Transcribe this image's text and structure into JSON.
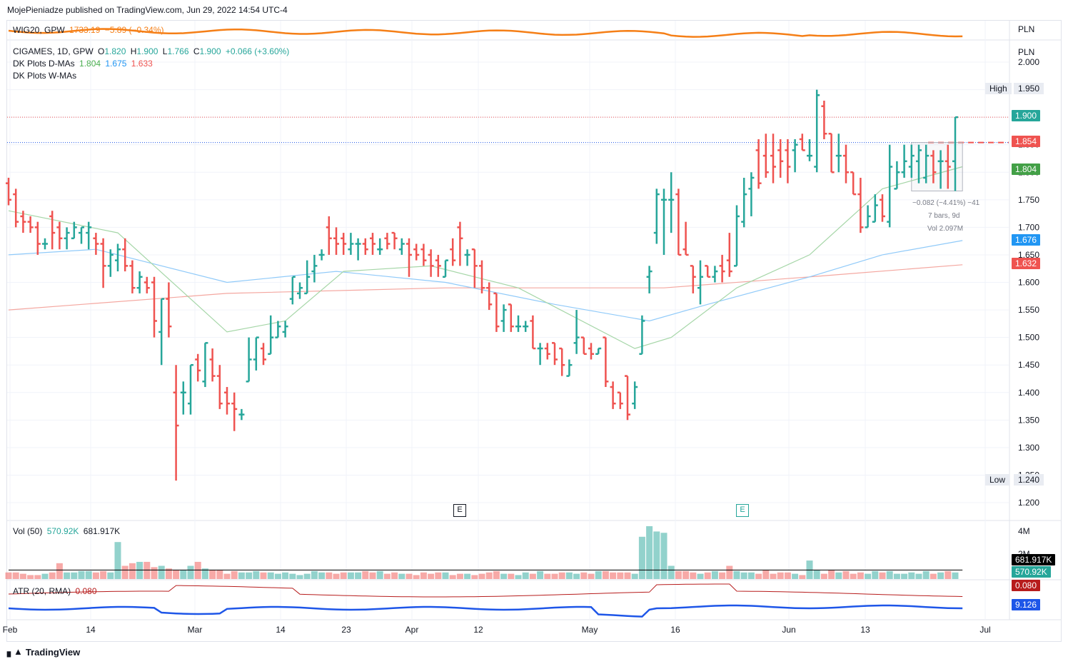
{
  "header": {
    "published": "MojePieniadze published on TradingView.com, Jun 29, 2022 14:54 UTC-4"
  },
  "wig20": {
    "symbol": "WIG20, GPW",
    "value": "1733.19",
    "change": "−5.89 (−0.34%)",
    "currency": "PLN",
    "color": "#f57f17"
  },
  "main": {
    "symbol": "CIGAMES, 1D, GPW",
    "o_label": "O",
    "o": "1.820",
    "h_label": "H",
    "h": "1.900",
    "l_label": "L",
    "l": "1.766",
    "c_label": "C",
    "c": "1.900",
    "change": "+0.066 (+3.60%)",
    "currency": "PLN",
    "dma_label": "DK Plots D-MAs",
    "dma1": "1.804",
    "dma2": "1.675",
    "dma3": "1.633",
    "wma_label": "DK Plots W-MAs"
  },
  "price_axis": {
    "ticks": [
      "2.000",
      "1.950",
      "1.900",
      "1.850",
      "1.800",
      "1.750",
      "1.700",
      "1.650",
      "1.600",
      "1.550",
      "1.500",
      "1.450",
      "1.400",
      "1.350",
      "1.300",
      "1.250",
      "1.200"
    ],
    "high_label": "High",
    "high": "1.950",
    "low_label": "Low",
    "low": "1.240",
    "last": "1.900",
    "dashed_level": "1.854",
    "ma20": "1.804",
    "ma50": "1.676",
    "ma200": "1.632"
  },
  "measure": {
    "line1": "−0.082 (−4.41%) −41",
    "line2": "7 bars, 9d",
    "line3": "Vol 2.097M"
  },
  "earnings_marker": "E",
  "volume": {
    "label": "Vol (50)",
    "value": "570.92K",
    "ma": "681.917K",
    "axis_top": "4M",
    "axis_mid": "2M"
  },
  "atr": {
    "label": "ATR (20, RMA)",
    "value": "0.080",
    "blue_value": "9.126"
  },
  "time_axis": [
    "Feb",
    "14",
    "Mar",
    "14",
    "23",
    "Apr",
    "12",
    "May",
    "16",
    "Jun",
    "13",
    "Jul"
  ],
  "colors": {
    "up": "#26a69a",
    "down": "#ef5350",
    "ma20": "#a5d6a7",
    "ma50": "#90caf9",
    "ma200": "#f4a7a0",
    "atr_line": "#b71c1c",
    "blue_line": "#1e56e8",
    "vol_ma": "#000000"
  },
  "footer": {
    "brand": "TradingView"
  },
  "chart_data": {
    "type": "ohlc",
    "title": "CIGAMES, 1D, GPW",
    "ylim": [
      1.2,
      2.0
    ],
    "bars": [
      {
        "o": 1.78,
        "h": 1.79,
        "l": 1.74,
        "c": 1.75
      },
      {
        "o": 1.76,
        "h": 1.77,
        "l": 1.7,
        "c": 1.71
      },
      {
        "o": 1.72,
        "h": 1.73,
        "l": 1.69,
        "c": 1.71
      },
      {
        "o": 1.71,
        "h": 1.72,
        "l": 1.69,
        "c": 1.7
      },
      {
        "o": 1.7,
        "h": 1.71,
        "l": 1.65,
        "c": 1.67
      },
      {
        "o": 1.67,
        "h": 1.68,
        "l": 1.66,
        "c": 1.67
      },
      {
        "o": 1.72,
        "h": 1.73,
        "l": 1.66,
        "c": 1.69
      },
      {
        "o": 1.7,
        "h": 1.71,
        "l": 1.66,
        "c": 1.68
      },
      {
        "o": 1.68,
        "h": 1.7,
        "l": 1.66,
        "c": 1.69
      },
      {
        "o": 1.68,
        "h": 1.71,
        "l": 1.68,
        "c": 1.7
      },
      {
        "o": 1.69,
        "h": 1.7,
        "l": 1.67,
        "c": 1.7
      },
      {
        "o": 1.69,
        "h": 1.71,
        "l": 1.66,
        "c": 1.7
      },
      {
        "o": 1.68,
        "h": 1.69,
        "l": 1.65,
        "c": 1.67
      },
      {
        "o": 1.67,
        "h": 1.68,
        "l": 1.59,
        "c": 1.63
      },
      {
        "o": 1.63,
        "h": 1.66,
        "l": 1.61,
        "c": 1.65
      },
      {
        "o": 1.64,
        "h": 1.67,
        "l": 1.62,
        "c": 1.66
      },
      {
        "o": 1.66,
        "h": 1.68,
        "l": 1.62,
        "c": 1.63
      },
      {
        "o": 1.63,
        "h": 1.64,
        "l": 1.58,
        "c": 1.59
      },
      {
        "o": 1.59,
        "h": 1.62,
        "l": 1.58,
        "c": 1.61
      },
      {
        "o": 1.6,
        "h": 1.61,
        "l": 1.58,
        "c": 1.59
      },
      {
        "o": 1.6,
        "h": 1.61,
        "l": 1.5,
        "c": 1.53
      },
      {
        "o": 1.51,
        "h": 1.57,
        "l": 1.45,
        "c": 1.57
      },
      {
        "o": 1.57,
        "h": 1.6,
        "l": 1.5,
        "c": 1.52
      },
      {
        "o": 1.4,
        "h": 1.45,
        "l": 1.24,
        "c": 1.34
      },
      {
        "o": 1.4,
        "h": 1.42,
        "l": 1.36,
        "c": 1.4
      },
      {
        "o": 1.38,
        "h": 1.45,
        "l": 1.36,
        "c": 1.45
      },
      {
        "o": 1.46,
        "h": 1.47,
        "l": 1.42,
        "c": 1.44
      },
      {
        "o": 1.42,
        "h": 1.49,
        "l": 1.41,
        "c": 1.49
      },
      {
        "o": 1.46,
        "h": 1.48,
        "l": 1.42,
        "c": 1.43
      },
      {
        "o": 1.43,
        "h": 1.45,
        "l": 1.37,
        "c": 1.38
      },
      {
        "o": 1.4,
        "h": 1.41,
        "l": 1.36,
        "c": 1.38
      },
      {
        "o": 1.38,
        "h": 1.4,
        "l": 1.33,
        "c": 1.37
      },
      {
        "o": 1.36,
        "h": 1.37,
        "l": 1.35,
        "c": 1.36
      },
      {
        "o": 1.42,
        "h": 1.5,
        "l": 1.42,
        "c": 1.46
      },
      {
        "o": 1.46,
        "h": 1.5,
        "l": 1.44,
        "c": 1.5
      },
      {
        "o": 1.48,
        "h": 1.49,
        "l": 1.45,
        "c": 1.46
      },
      {
        "o": 1.47,
        "h": 1.54,
        "l": 1.47,
        "c": 1.5
      },
      {
        "o": 1.5,
        "h": 1.53,
        "l": 1.5,
        "c": 1.52
      },
      {
        "o": 1.51,
        "h": 1.53,
        "l": 1.5,
        "c": 1.52
      },
      {
        "o": 1.57,
        "h": 1.61,
        "l": 1.56,
        "c": 1.61
      },
      {
        "o": 1.58,
        "h": 1.6,
        "l": 1.57,
        "c": 1.59
      },
      {
        "o": 1.58,
        "h": 1.64,
        "l": 1.58,
        "c": 1.61
      },
      {
        "o": 1.62,
        "h": 1.65,
        "l": 1.6,
        "c": 1.63
      },
      {
        "o": 1.65,
        "h": 1.66,
        "l": 1.64,
        "c": 1.65
      },
      {
        "o": 1.7,
        "h": 1.72,
        "l": 1.65,
        "c": 1.68
      },
      {
        "o": 1.68,
        "h": 1.7,
        "l": 1.65,
        "c": 1.67
      },
      {
        "o": 1.68,
        "h": 1.69,
        "l": 1.65,
        "c": 1.67
      },
      {
        "o": 1.66,
        "h": 1.69,
        "l": 1.65,
        "c": 1.67
      },
      {
        "o": 1.67,
        "h": 1.68,
        "l": 1.64,
        "c": 1.67
      },
      {
        "o": 1.67,
        "h": 1.68,
        "l": 1.65,
        "c": 1.66
      },
      {
        "o": 1.68,
        "h": 1.69,
        "l": 1.65,
        "c": 1.67
      },
      {
        "o": 1.66,
        "h": 1.68,
        "l": 1.65,
        "c": 1.66
      },
      {
        "o": 1.68,
        "h": 1.69,
        "l": 1.66,
        "c": 1.67
      },
      {
        "o": 1.69,
        "h": 1.69,
        "l": 1.66,
        "c": 1.68
      },
      {
        "o": 1.66,
        "h": 1.68,
        "l": 1.65,
        "c": 1.67
      },
      {
        "o": 1.67,
        "h": 1.68,
        "l": 1.61,
        "c": 1.65
      },
      {
        "o": 1.66,
        "h": 1.67,
        "l": 1.64,
        "c": 1.65
      },
      {
        "o": 1.66,
        "h": 1.67,
        "l": 1.63,
        "c": 1.64
      },
      {
        "o": 1.65,
        "h": 1.66,
        "l": 1.61,
        "c": 1.63
      },
      {
        "o": 1.64,
        "h": 1.65,
        "l": 1.61,
        "c": 1.63
      },
      {
        "o": 1.61,
        "h": 1.64,
        "l": 1.61,
        "c": 1.64
      },
      {
        "o": 1.66,
        "h": 1.68,
        "l": 1.63,
        "c": 1.64
      },
      {
        "o": 1.7,
        "h": 1.71,
        "l": 1.63,
        "c": 1.68
      },
      {
        "o": 1.65,
        "h": 1.66,
        "l": 1.63,
        "c": 1.65
      },
      {
        "o": 1.66,
        "h": 1.66,
        "l": 1.59,
        "c": 1.63
      },
      {
        "o": 1.63,
        "h": 1.64,
        "l": 1.58,
        "c": 1.59
      },
      {
        "o": 1.59,
        "h": 1.6,
        "l": 1.55,
        "c": 1.56
      },
      {
        "o": 1.58,
        "h": 1.58,
        "l": 1.51,
        "c": 1.52
      },
      {
        "o": 1.53,
        "h": 1.56,
        "l": 1.51,
        "c": 1.55
      },
      {
        "o": 1.56,
        "h": 1.56,
        "l": 1.51,
        "c": 1.52
      },
      {
        "o": 1.52,
        "h": 1.54,
        "l": 1.51,
        "c": 1.52
      },
      {
        "o": 1.52,
        "h": 1.53,
        "l": 1.51,
        "c": 1.52
      },
      {
        "o": 1.53,
        "h": 1.54,
        "l": 1.48,
        "c": 1.48
      },
      {
        "o": 1.48,
        "h": 1.49,
        "l": 1.45,
        "c": 1.48
      },
      {
        "o": 1.48,
        "h": 1.49,
        "l": 1.46,
        "c": 1.47
      },
      {
        "o": 1.49,
        "h": 1.49,
        "l": 1.45,
        "c": 1.46
      },
      {
        "o": 1.48,
        "h": 1.48,
        "l": 1.43,
        "c": 1.45
      },
      {
        "o": 1.43,
        "h": 1.46,
        "l": 1.43,
        "c": 1.45
      },
      {
        "o": 1.49,
        "h": 1.55,
        "l": 1.47,
        "c": 1.5
      },
      {
        "o": 1.5,
        "h": 1.5,
        "l": 1.47,
        "c": 1.47
      },
      {
        "o": 1.48,
        "h": 1.49,
        "l": 1.46,
        "c": 1.47
      },
      {
        "o": 1.47,
        "h": 1.48,
        "l": 1.47,
        "c": 1.48
      },
      {
        "o": 1.5,
        "h": 1.5,
        "l": 1.41,
        "c": 1.42
      },
      {
        "o": 1.41,
        "h": 1.42,
        "l": 1.37,
        "c": 1.38
      },
      {
        "o": 1.4,
        "h": 1.4,
        "l": 1.37,
        "c": 1.38
      },
      {
        "o": 1.43,
        "h": 1.43,
        "l": 1.35,
        "c": 1.36
      },
      {
        "o": 1.38,
        "h": 1.42,
        "l": 1.37,
        "c": 1.41
      },
      {
        "o": 1.47,
        "h": 1.54,
        "l": 1.47,
        "c": 1.53
      },
      {
        "o": 1.61,
        "h": 1.63,
        "l": 1.58,
        "c": 1.62
      },
      {
        "o": 1.69,
        "h": 1.77,
        "l": 1.67,
        "c": 1.76
      },
      {
        "o": 1.75,
        "h": 1.77,
        "l": 1.65,
        "c": 1.75
      },
      {
        "o": 1.75,
        "h": 1.8,
        "l": 1.69,
        "c": 1.75
      },
      {
        "o": 1.76,
        "h": 1.77,
        "l": 1.65,
        "c": 1.65
      },
      {
        "o": 1.66,
        "h": 1.71,
        "l": 1.65,
        "c": 1.65
      },
      {
        "o": 1.63,
        "h": 1.63,
        "l": 1.58,
        "c": 1.61
      },
      {
        "o": 1.59,
        "h": 1.64,
        "l": 1.56,
        "c": 1.61
      },
      {
        "o": 1.63,
        "h": 1.63,
        "l": 1.61,
        "c": 1.61
      },
      {
        "o": 1.61,
        "h": 1.63,
        "l": 1.6,
        "c": 1.62
      },
      {
        "o": 1.63,
        "h": 1.65,
        "l": 1.6,
        "c": 1.62
      },
      {
        "o": 1.64,
        "h": 1.69,
        "l": 1.61,
        "c": 1.62
      },
      {
        "o": 1.63,
        "h": 1.74,
        "l": 1.63,
        "c": 1.72
      },
      {
        "o": 1.71,
        "h": 1.79,
        "l": 1.7,
        "c": 1.76
      },
      {
        "o": 1.77,
        "h": 1.8,
        "l": 1.72,
        "c": 1.79
      },
      {
        "o": 1.84,
        "h": 1.86,
        "l": 1.77,
        "c": 1.78
      },
      {
        "o": 1.83,
        "h": 1.87,
        "l": 1.79,
        "c": 1.8
      },
      {
        "o": 1.83,
        "h": 1.87,
        "l": 1.78,
        "c": 1.81
      },
      {
        "o": 1.84,
        "h": 1.86,
        "l": 1.79,
        "c": 1.82
      },
      {
        "o": 1.84,
        "h": 1.86,
        "l": 1.78,
        "c": 1.81
      },
      {
        "o": 1.84,
        "h": 1.86,
        "l": 1.8,
        "c": 1.85
      },
      {
        "o": 1.86,
        "h": 1.87,
        "l": 1.84,
        "c": 1.84
      },
      {
        "o": 1.83,
        "h": 1.86,
        "l": 1.82,
        "c": 1.83
      },
      {
        "o": 1.81,
        "h": 1.95,
        "l": 1.8,
        "c": 1.94
      },
      {
        "o": 1.92,
        "h": 1.93,
        "l": 1.86,
        "c": 1.87
      },
      {
        "o": 1.87,
        "h": 1.87,
        "l": 1.8,
        "c": 1.8
      },
      {
        "o": 1.83,
        "h": 1.87,
        "l": 1.8,
        "c": 1.83
      },
      {
        "o": 1.83,
        "h": 1.85,
        "l": 1.78,
        "c": 1.8
      },
      {
        "o": 1.8,
        "h": 1.8,
        "l": 1.76,
        "c": 1.76
      },
      {
        "o": 1.76,
        "h": 1.79,
        "l": 1.69,
        "c": 1.7
      },
      {
        "o": 1.7,
        "h": 1.74,
        "l": 1.7,
        "c": 1.72
      },
      {
        "o": 1.71,
        "h": 1.76,
        "l": 1.71,
        "c": 1.74
      },
      {
        "o": 1.75,
        "h": 1.76,
        "l": 1.71,
        "c": 1.72
      },
      {
        "o": 1.71,
        "h": 1.85,
        "l": 1.7,
        "c": 1.81
      },
      {
        "o": 1.77,
        "h": 1.82,
        "l": 1.77,
        "c": 1.8
      },
      {
        "o": 1.8,
        "h": 1.85,
        "l": 1.79,
        "c": 1.82
      },
      {
        "o": 1.81,
        "h": 1.85,
        "l": 1.79,
        "c": 1.83
      },
      {
        "o": 1.82,
        "h": 1.85,
        "l": 1.78,
        "c": 1.84
      },
      {
        "o": 1.79,
        "h": 1.85,
        "l": 1.78,
        "c": 1.83
      },
      {
        "o": 1.83,
        "h": 1.84,
        "l": 1.78,
        "c": 1.8
      },
      {
        "o": 1.82,
        "h": 1.84,
        "l": 1.77,
        "c": 1.82
      },
      {
        "o": 1.82,
        "h": 1.85,
        "l": 1.77,
        "c": 1.81
      },
      {
        "o": 1.82,
        "h": 1.9,
        "l": 1.766,
        "c": 1.9
      }
    ],
    "volume_values": [
      0.5,
      0.5,
      0.4,
      0.3,
      0.3,
      0.4,
      0.5,
      1.2,
      0.5,
      0.5,
      0.6,
      0.6,
      0.5,
      0.6,
      0.5,
      2.8,
      1.0,
      1.2,
      1.3,
      1.3,
      0.9,
      1.0,
      0.8,
      0.7,
      0.7,
      1.0,
      1.3,
      0.8,
      0.7,
      0.7,
      0.4,
      0.6,
      0.5,
      0.5,
      0.6,
      0.5,
      0.5,
      0.4,
      0.5,
      0.4,
      0.3,
      0.4,
      0.6,
      0.5,
      0.5,
      0.4,
      0.5,
      0.5,
      0.5,
      0.6,
      0.5,
      0.6,
      0.4,
      0.5,
      0.4,
      0.4,
      0.3,
      0.5,
      0.4,
      0.5,
      0.5,
      0.3,
      0.4,
      0.4,
      0.3,
      0.4,
      0.5,
      0.6,
      0.4,
      0.4,
      0.3,
      0.5,
      0.4,
      0.6,
      0.4,
      0.4,
      0.5,
      0.5,
      0.4,
      0.5,
      0.4,
      0.6,
      0.6,
      0.5,
      0.5,
      0.5,
      0.4,
      3.2,
      4.0,
      3.6,
      3.5,
      1.0,
      0.6,
      0.6,
      0.5,
      0.4,
      0.5,
      0.6,
      0.5,
      1.0,
      0.6,
      0.5,
      0.5,
      0.4,
      0.7,
      0.4,
      0.5,
      0.5,
      0.4,
      0.3,
      1.4,
      0.7,
      0.4,
      0.7,
      0.5,
      0.6,
      0.4,
      0.5,
      0.4,
      0.6,
      0.5,
      0.6,
      0.4,
      0.4,
      0.5,
      0.4,
      0.6,
      0.4,
      0.5,
      0.6,
      0.5
    ],
    "volume_ma": 0.68,
    "ma20": [
      [
        0,
        1.73
      ],
      [
        15,
        1.69
      ],
      [
        30,
        1.51
      ],
      [
        38,
        1.53
      ],
      [
        46,
        1.62
      ],
      [
        58,
        1.63
      ],
      [
        70,
        1.59
      ],
      [
        86,
        1.48
      ],
      [
        91,
        1.5
      ],
      [
        100,
        1.59
      ],
      [
        110,
        1.65
      ],
      [
        120,
        1.77
      ],
      [
        131,
        1.81
      ]
    ],
    "ma50": [
      [
        0,
        1.65
      ],
      [
        12,
        1.66
      ],
      [
        30,
        1.6
      ],
      [
        45,
        1.62
      ],
      [
        60,
        1.6
      ],
      [
        75,
        1.56
      ],
      [
        88,
        1.53
      ],
      [
        96,
        1.56
      ],
      [
        110,
        1.61
      ],
      [
        120,
        1.65
      ],
      [
        131,
        1.676
      ]
    ],
    "ma200": [
      [
        0,
        1.55
      ],
      [
        30,
        1.58
      ],
      [
        60,
        1.59
      ],
      [
        90,
        1.59
      ],
      [
        110,
        1.61
      ],
      [
        131,
        1.632
      ]
    ]
  }
}
